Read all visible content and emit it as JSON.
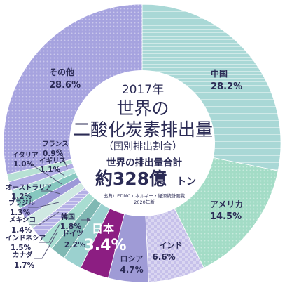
{
  "colors": {
    "background": "#ffffff",
    "center_fill": "#ffffff",
    "text_dark": "#2b2b55",
    "leader_line": "#555577"
  },
  "center": {
    "year": "2017年",
    "title_line1": "世界の",
    "title_line2": "二酸化炭素排出量",
    "subtitle": "（国別排出割合）",
    "total_label": "世界の排出量合計",
    "total_value": "約328億",
    "total_unit": "トン",
    "source_line1": "出典）EDMCエネルギー・経済統計要覧",
    "source_line2": "2020年版"
  },
  "chart_data": {
    "type": "pie",
    "title": "世界の二酸化炭素排出量",
    "subtitle": "（国別排出割合）",
    "unit": "%",
    "slices": [
      {
        "label": "中国",
        "value": 28.2,
        "value_label": "28.2%",
        "color": "#a9d8d6",
        "pattern": "stripes"
      },
      {
        "label": "アメリカ",
        "value": 14.5,
        "value_label": "14.5%",
        "color": "#a3dcc6",
        "pattern": "dots"
      },
      {
        "label": "インド",
        "value": 6.6,
        "value_label": "6.6%",
        "color": "#c6c0ea",
        "pattern": "checker"
      },
      {
        "label": "ロシア",
        "value": 4.7,
        "value_label": "4.7%",
        "color": "#9f9bd6",
        "pattern": "none"
      },
      {
        "label": "日本",
        "value": 3.4,
        "value_label": "3.4%",
        "color": "#8c1e82",
        "pattern": "none"
      },
      {
        "label": "ドイツ",
        "value": 2.2,
        "value_label": "2.2%",
        "color": "#9bd1cf",
        "pattern": "none"
      },
      {
        "label": "韓国",
        "value": 1.8,
        "value_label": "1.8%",
        "color": "#7fb8b3",
        "pattern": "none"
      },
      {
        "label": "カナダ",
        "value": 1.7,
        "value_label": "1.7%",
        "color": "#a8ddd1",
        "pattern": "none"
      },
      {
        "label": "インドネシア",
        "value": 1.5,
        "value_label": "1.5%",
        "color": "#b5b0e6",
        "pattern": "stripes"
      },
      {
        "label": "メキシコ",
        "value": 1.4,
        "value_label": "1.4%",
        "color": "#cfe8e2",
        "pattern": "none"
      },
      {
        "label": "ブラジル",
        "value": 1.3,
        "value_label": "1.3%",
        "color": "#9d98d8",
        "pattern": "none"
      },
      {
        "label": "オーストラリア",
        "value": 1.2,
        "value_label": "1.2%",
        "color": "#86c7bf",
        "pattern": "none"
      },
      {
        "label": "イギリス",
        "value": 1.1,
        "value_label": "1.1%",
        "color": "#b9e3dd",
        "pattern": "none"
      },
      {
        "label": "イタリア",
        "value": 1.0,
        "value_label": "1.0%",
        "color": "#b0ace4",
        "pattern": "none"
      },
      {
        "label": "フランス",
        "value": 0.9,
        "value_label": "0.9%",
        "color": "#b7e0d4",
        "pattern": "none"
      },
      {
        "label": "その他",
        "value": 28.6,
        "value_label": "28.6%",
        "color": "#a6a3df",
        "pattern": "dots"
      }
    ],
    "start_angle_deg": 0,
    "direction": "clockwise",
    "legend": "none"
  }
}
